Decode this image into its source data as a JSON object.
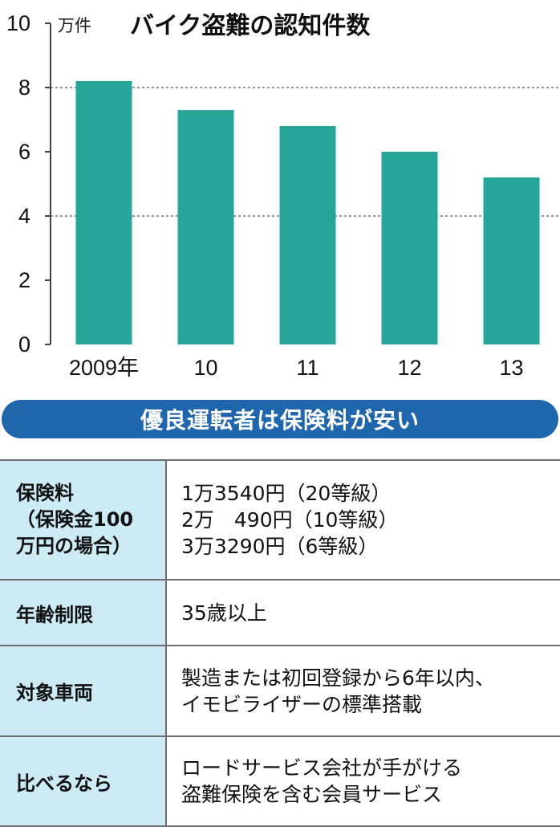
{
  "chart_data": {
    "type": "bar",
    "title": "バイク盗難の認知件数",
    "unit": "万件",
    "categories": [
      "2009年",
      "10",
      "11",
      "12",
      "13"
    ],
    "values": [
      8.2,
      7.3,
      6.8,
      6.0,
      5.2
    ],
    "ylim": [
      0,
      10
    ],
    "yticks": [
      0,
      2,
      4,
      6,
      8,
      10
    ],
    "gridlines": [
      4,
      8
    ],
    "bar_color": "#26a598",
    "grid": "dotted at 4 and 8"
  },
  "pill_title": "優良運転者は保険料が安い",
  "table": {
    "rows": [
      {
        "label_lines": [
          "保険料",
          "（保険金100",
          "万円の場合）"
        ],
        "value_lines": [
          "1万3540円（20等級）",
          "2万　490円（10等級）",
          "3万3290円（6等級）"
        ]
      },
      {
        "label_lines": [
          "年齢制限"
        ],
        "value_lines": [
          "35歳以上"
        ]
      },
      {
        "label_lines": [
          "対象車両"
        ],
        "value_lines": [
          "製造または初回登録から6年以内、",
          "イモビライザーの標準搭載"
        ]
      },
      {
        "label_lines": [
          "比べるなら"
        ],
        "value_lines": [
          "ロードサービス会社が手がける",
          "盗難保険を含む会員サービス"
        ]
      }
    ]
  },
  "colors": {
    "pill_bg": "#1f66ad",
    "label_bg": "#cdebf5",
    "bar": "#26a598"
  }
}
